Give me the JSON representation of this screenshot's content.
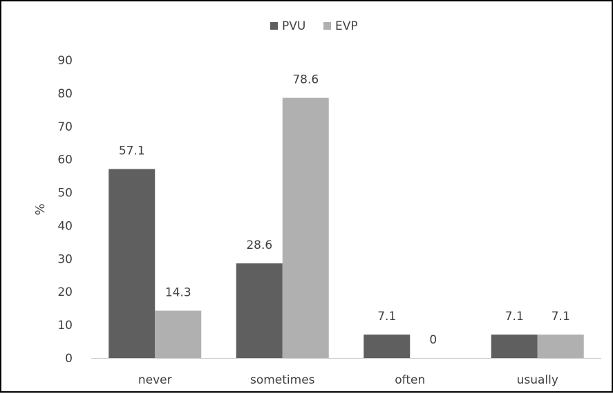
{
  "chart_data": {
    "type": "bar",
    "categories": [
      "never",
      "sometimes",
      "often",
      "usually"
    ],
    "series": [
      {
        "name": "PVU",
        "values": [
          57.1,
          28.6,
          7.1,
          7.1
        ],
        "labels": [
          "57.1",
          "28.6",
          "7.1",
          "7.1"
        ],
        "color": "#5f5f5f"
      },
      {
        "name": "EVP",
        "values": [
          14.3,
          78.6,
          0,
          7.1
        ],
        "labels": [
          "14.3",
          "78.6",
          "0",
          "7.1"
        ],
        "color": "#b0b0b0"
      }
    ],
    "title": "",
    "xlabel": "",
    "ylabel": "%",
    "ylim": [
      0,
      90
    ],
    "yticks": [
      0,
      10,
      20,
      30,
      40,
      50,
      60,
      70,
      80,
      90
    ],
    "legend_position": "top",
    "grid": false
  }
}
